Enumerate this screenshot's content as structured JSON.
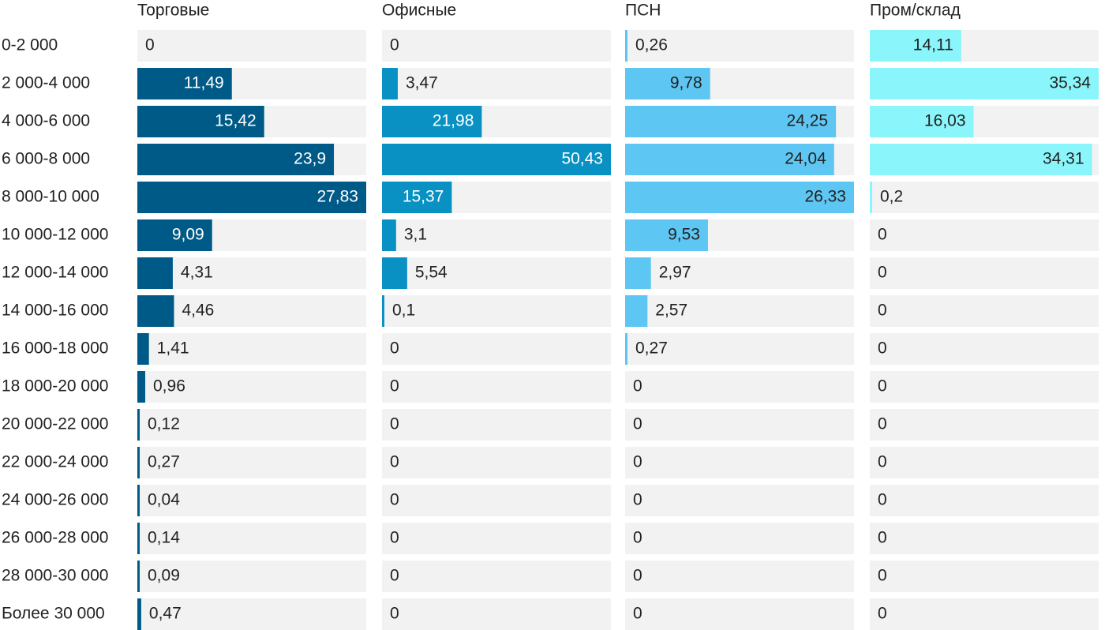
{
  "chart_data": {
    "type": "bar-small-multiples",
    "categories": [
      "0-2 000",
      "2 000-4 000",
      "4 000-6 000",
      "6 000-8 000",
      "8 000-10 000",
      "10 000-12 000",
      "12 000-14 000",
      "14 000-16 000",
      "16 000-18 000",
      "18 000-20 000",
      "20 000-22 000",
      "22 000-24 000",
      "24 000-26 000",
      "26 000-28 000",
      "28 000-30 000",
      "Более 30 000"
    ],
    "series": [
      {
        "name": "Торговые",
        "color": "#005a87",
        "values": [
          0,
          11.49,
          15.42,
          23.9,
          27.83,
          9.09,
          4.31,
          4.46,
          1.41,
          0.96,
          0.12,
          0.27,
          0.04,
          0.14,
          0.09,
          0.47
        ],
        "value_labels": [
          "0",
          "11,49",
          "15,42",
          "23,9",
          "27,83",
          "9,09",
          "4,31",
          "4,46",
          "1,41",
          "0,96",
          "0,12",
          "0,27",
          "0,04",
          "0,14",
          "0,09",
          "0,47"
        ]
      },
      {
        "name": "Офисные",
        "color": "#0891c2",
        "values": [
          0,
          3.47,
          21.98,
          50.43,
          15.37,
          3.1,
          5.54,
          0.1,
          0,
          0,
          0,
          0,
          0,
          0,
          0,
          0
        ],
        "value_labels": [
          "0",
          "3,47",
          "21,98",
          "50,43",
          "15,37",
          "3,1",
          "5,54",
          "0,1",
          "0",
          "0",
          "0",
          "0",
          "0",
          "0",
          "0",
          "0"
        ]
      },
      {
        "name": "ПСН",
        "color": "#5ec6f2",
        "values": [
          0.26,
          9.78,
          24.25,
          24.04,
          26.33,
          9.53,
          2.97,
          2.57,
          0.27,
          0,
          0,
          0,
          0,
          0,
          0,
          0
        ],
        "value_labels": [
          "0,26",
          "9,78",
          "24,25",
          "24,04",
          "26,33",
          "9,53",
          "2,97",
          "2,57",
          "0,27",
          "0",
          "0",
          "0",
          "0",
          "0",
          "0",
          "0"
        ]
      },
      {
        "name": "Пром/склад",
        "color": "#8af5fa",
        "values": [
          14.11,
          35.34,
          16.03,
          34.31,
          0.2,
          0,
          0,
          0,
          0,
          0,
          0,
          0,
          0,
          0,
          0,
          0
        ],
        "value_labels": [
          "14,11",
          "35,34",
          "16,03",
          "34,31",
          "0,2",
          "0",
          "0",
          "0",
          "0",
          "0",
          "0",
          "0",
          "0",
          "0",
          "0",
          "0"
        ]
      }
    ]
  }
}
